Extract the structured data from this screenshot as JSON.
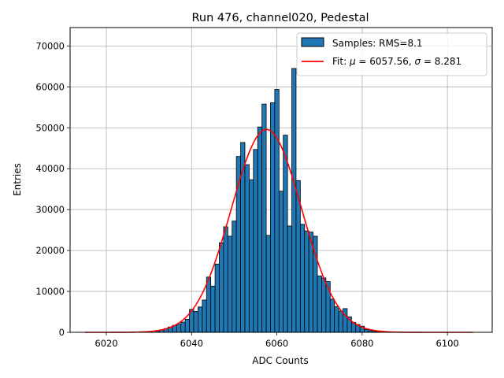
{
  "chart_data": {
    "type": "bar",
    "title": "Run 476, channel020, Pedestal",
    "xlabel": "ADC Counts",
    "ylabel": "Entries",
    "xlim": [
      6011.5,
      6110.5
    ],
    "ylim": [
      0,
      74500
    ],
    "xticks": [
      6020,
      6040,
      6060,
      6080,
      6100
    ],
    "yticks": [
      0,
      10000,
      20000,
      30000,
      40000,
      50000,
      60000,
      70000
    ],
    "grid": true,
    "legend_position": "top-right",
    "bar_color": "#1f77b4",
    "fit_color": "#ff0000",
    "histogram": {
      "name": "Samples: RMS=8.1",
      "bin_width": 1,
      "x": [
        6032,
        6033,
        6034,
        6035,
        6036,
        6037,
        6038,
        6039,
        6040,
        6041,
        6042,
        6043,
        6044,
        6045,
        6046,
        6047,
        6048,
        6049,
        6050,
        6051,
        6052,
        6053,
        6054,
        6055,
        6056,
        6057,
        6058,
        6059,
        6060,
        6061,
        6062,
        6063,
        6064,
        6065,
        6066,
        6067,
        6068,
        6069,
        6070,
        6071,
        6072,
        6073,
        6074,
        6075,
        6076,
        6077,
        6078,
        6079,
        6080,
        6081,
        6082,
        6083,
        6084
      ],
      "values": [
        300,
        600,
        900,
        1300,
        1700,
        2000,
        2500,
        3200,
        5600,
        5100,
        6200,
        7900,
        13500,
        11300,
        16700,
        21900,
        25800,
        23500,
        27200,
        43000,
        46400,
        41000,
        37300,
        44700,
        50200,
        55800,
        23700,
        56100,
        59400,
        34500,
        48200,
        26000,
        64500,
        37100,
        26400,
        24800,
        24500,
        23500,
        13800,
        13300,
        12400,
        8100,
        6300,
        5200,
        5800,
        3800,
        2400,
        1900,
        1500,
        700,
        400,
        200,
        100
      ]
    },
    "fit": {
      "name": "Fit: μ = 6057.56, σ = 8.281",
      "name_parts": [
        "Fit: ",
        "μ",
        " = 6057.56, ",
        "σ",
        " = 8.281"
      ],
      "mu": 6057.56,
      "sigma": 8.281,
      "amplitude": 49600,
      "x_range": [
        6015,
        6106
      ]
    }
  }
}
